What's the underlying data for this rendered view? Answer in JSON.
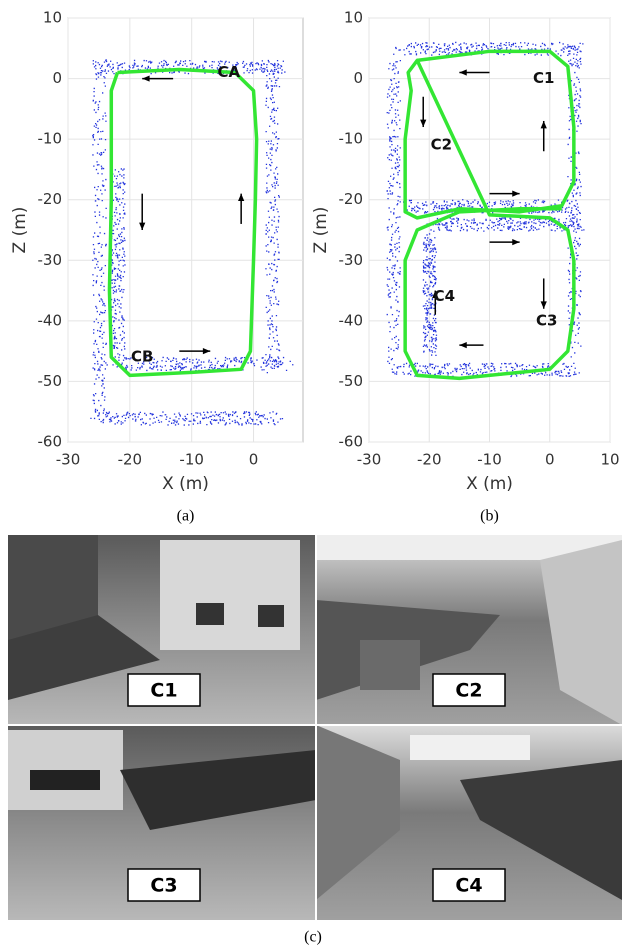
{
  "chart_data": [
    {
      "type": "line",
      "caption": "(a)",
      "xlabel": "X (m)",
      "ylabel": "Z (m)",
      "xlim": [
        -30,
        8
      ],
      "ylim": [
        -60,
        10
      ],
      "xticks": [
        -30,
        -20,
        -10,
        0
      ],
      "yticks": [
        10,
        0,
        -10,
        -20,
        -30,
        -40,
        -50,
        -60
      ],
      "grid": true,
      "series": [
        {
          "color": "#33e633",
          "x": [
            -22,
            -12,
            -3,
            0,
            0.5,
            0.3,
            0,
            -0.5,
            -2,
            -10,
            -20,
            -23,
            -23.3,
            -23,
            -23,
            -22
          ],
          "values": [
            1,
            1.5,
            1,
            -2,
            -10,
            -20,
            -30,
            -45,
            -48,
            -48.5,
            -49,
            -46,
            -35,
            -20,
            -2,
            1
          ]
        }
      ],
      "annotations": [
        "CA",
        "CB"
      ]
    },
    {
      "type": "line",
      "caption": "(b)",
      "xlabel": "X (m)",
      "ylabel": "Z (m)",
      "xlim": [
        -30,
        10
      ],
      "ylim": [
        -60,
        10
      ],
      "xticks": [
        -30,
        -20,
        -10,
        0,
        10
      ],
      "yticks": [
        10,
        0,
        -10,
        -20,
        -30,
        -40,
        -50,
        -60
      ],
      "grid": true,
      "series": [
        {
          "color": "#33e633",
          "x": [
            -22,
            -10,
            0,
            3,
            4,
            4,
            2,
            -5,
            -15,
            -22,
            -24,
            -24,
            -23,
            -23.5,
            -22,
            -22,
            -10,
            0,
            3,
            4,
            4,
            3,
            0,
            -5,
            -15,
            -22,
            -24,
            -24,
            -22,
            -15,
            -5,
            2
          ],
          "values": [
            3,
            4.5,
            4.5,
            2,
            -8,
            -17,
            -21,
            -22,
            -21.5,
            -23,
            -22,
            -10,
            -2,
            1,
            3,
            3,
            -22.5,
            -23,
            -25,
            -30,
            -38,
            -45,
            -48,
            -48.5,
            -49.5,
            -49,
            -45,
            -30,
            -25,
            -22,
            -21.5,
            -21.5
          ]
        }
      ],
      "annotations": [
        "C1",
        "C2",
        "C3",
        "C4"
      ]
    }
  ],
  "photos": {
    "labels": [
      "C1",
      "C2",
      "C3",
      "C4"
    ]
  },
  "figure_caption": "(c)"
}
